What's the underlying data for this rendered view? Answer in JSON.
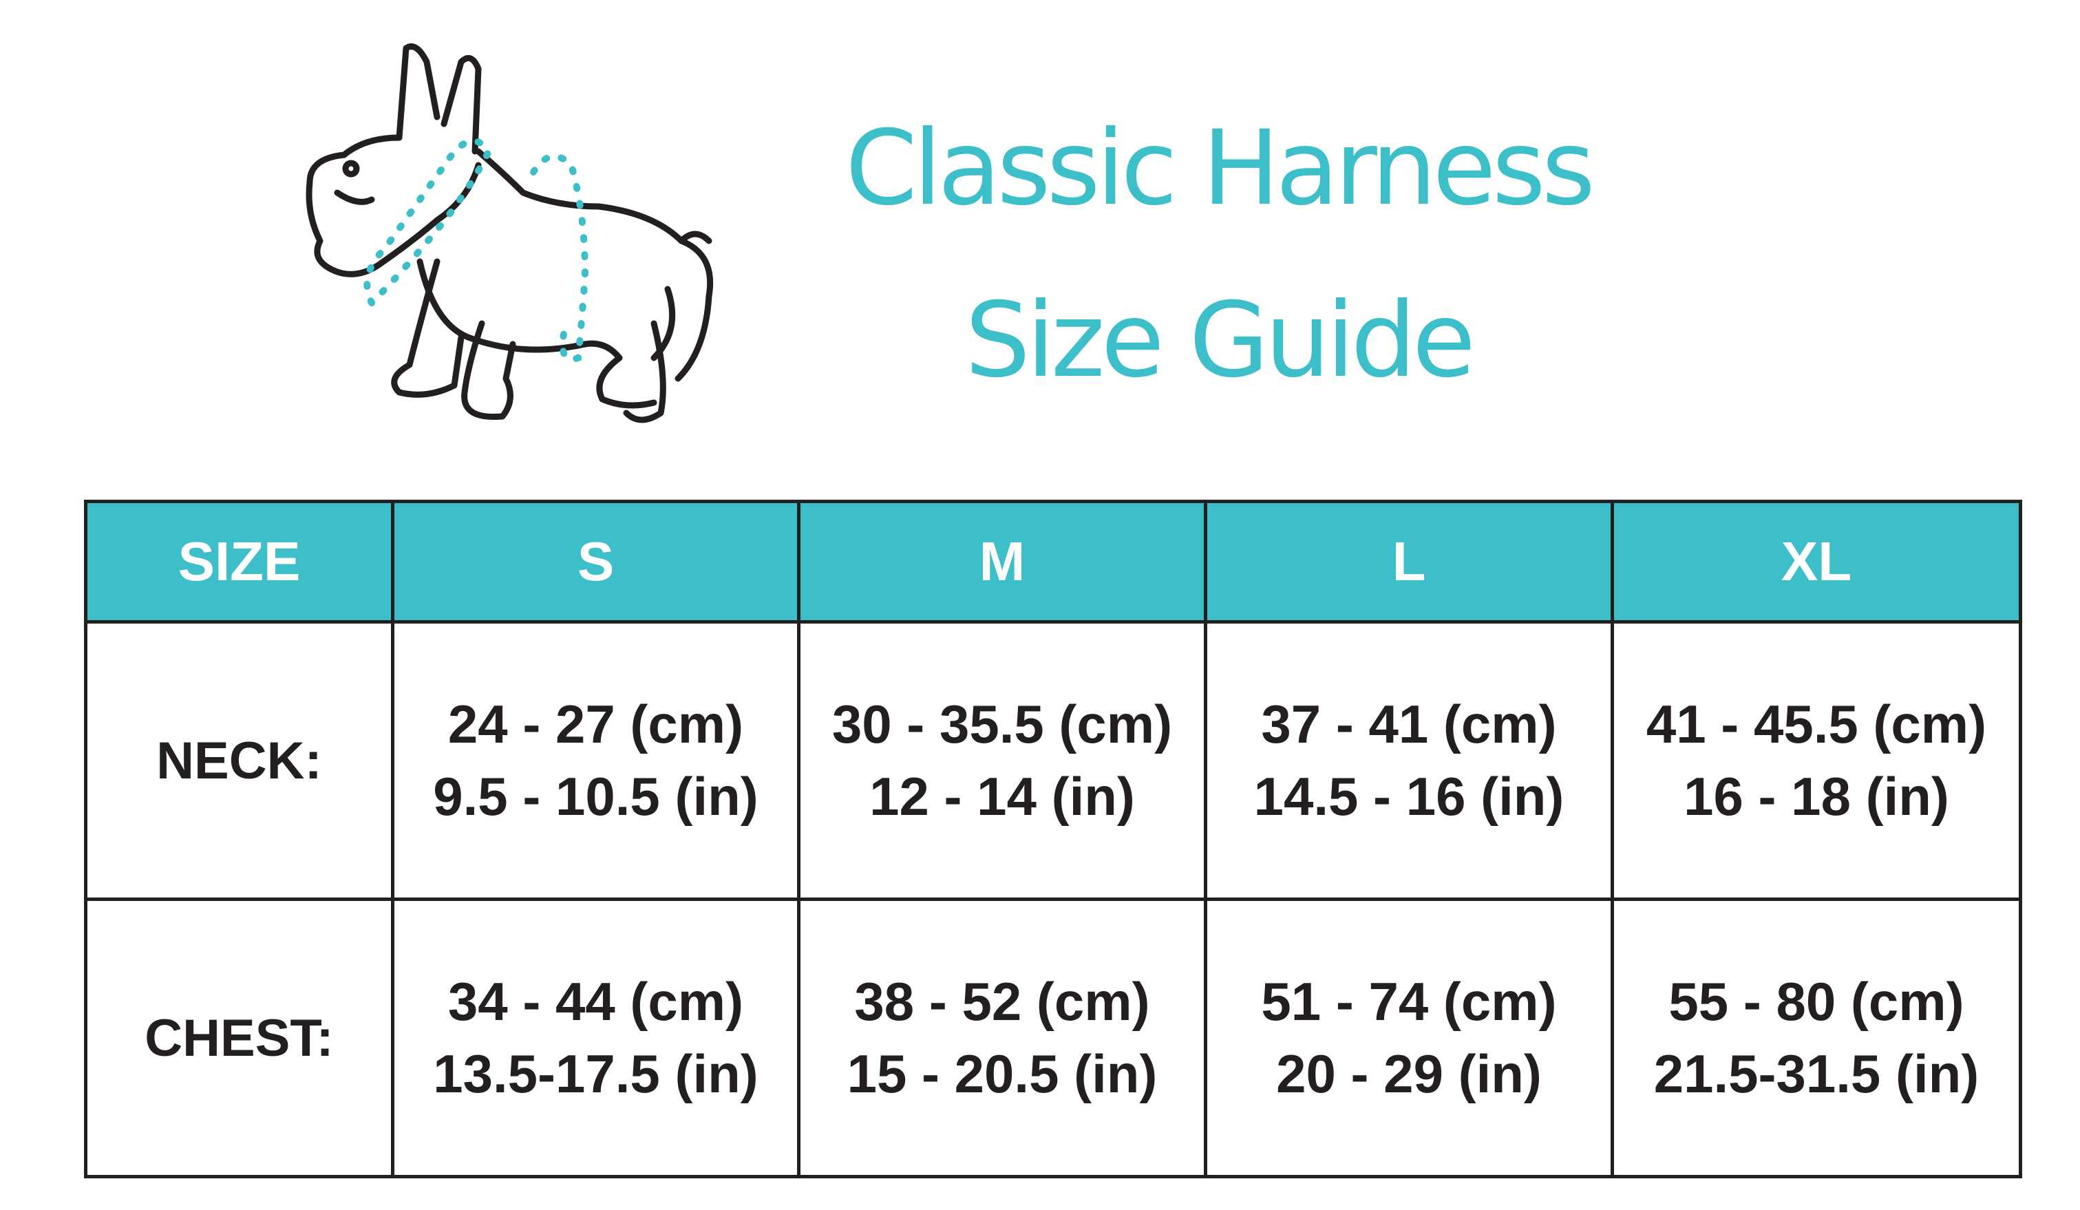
{
  "title": {
    "line1": "Classic Harness",
    "line2": "Size Guide"
  },
  "colors": {
    "accent": "#3cbfc8",
    "text": "#231f20",
    "border": "#231f20"
  },
  "illustration": "french-bulldog-outline-with-dotted-neck-and-chest-measurement-lines",
  "table": {
    "headers": [
      "SIZE",
      "S",
      "M",
      "L",
      "XL"
    ],
    "rows": [
      {
        "label": "NECK:",
        "cells": [
          {
            "cm": "24 - 27 (cm)",
            "in": "9.5 - 10.5 (in)"
          },
          {
            "cm": "30 - 35.5 (cm)",
            "in": "12 - 14 (in)"
          },
          {
            "cm": "37 - 41 (cm)",
            "in": "14.5 - 16 (in)"
          },
          {
            "cm": "41 - 45.5 (cm)",
            "in": "16 - 18 (in)"
          }
        ]
      },
      {
        "label": "CHEST:",
        "cells": [
          {
            "cm": "34 - 44 (cm)",
            "in": "13.5-17.5 (in)"
          },
          {
            "cm": "38 - 52 (cm)",
            "in": "15 - 20.5 (in)"
          },
          {
            "cm": "51 - 74 (cm)",
            "in": "20 - 29 (in)"
          },
          {
            "cm": "55 - 80 (cm)",
            "in": "21.5-31.5 (in)"
          }
        ]
      }
    ]
  }
}
